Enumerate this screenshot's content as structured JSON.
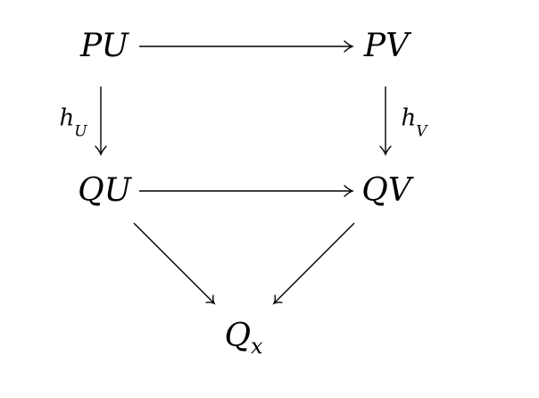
{
  "nodes": {
    "pu": {
      "main": "PU"
    },
    "pv": {
      "main": "PV"
    },
    "qu": {
      "main": "QU"
    },
    "qv": {
      "main": "QV"
    },
    "qx": {
      "main": "Q",
      "sub": "x"
    }
  },
  "labels": {
    "h_u": {
      "main": "h",
      "sub": "U"
    },
    "h_v": {
      "main": "h",
      "sub": "V"
    }
  },
  "colors": {
    "ink": "#000000",
    "background": "#ffffff"
  }
}
